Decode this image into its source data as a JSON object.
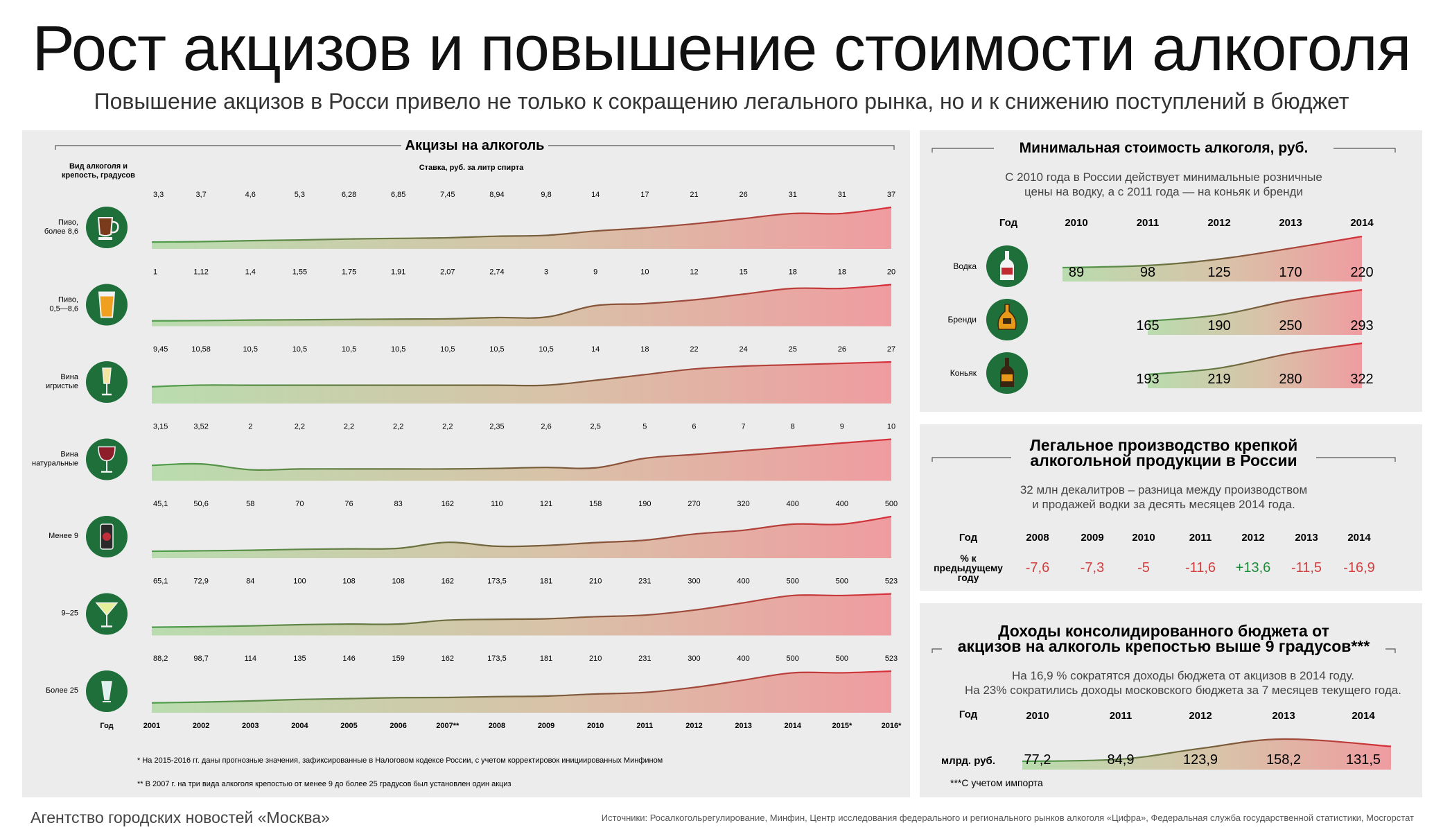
{
  "title": "Рост акцизов и повышение стоимости алкоголя",
  "subtitle": "Повышение акцизов в Росси привело не только к сокращению легального рынка, но и к снижению поступлений в бюджет",
  "colors": {
    "green": "#1e6f3a",
    "positive": "#1e8c3a",
    "negative": "#d33f3f",
    "area_start": "#b9dcae",
    "area_end": "#ef9ca0"
  },
  "excise": {
    "header": "Акцизы на алкоголь",
    "col_label_type": "Вид алкоголя и крепость, градусов",
    "col_label_rate": "Ставка, руб. за литр спирта",
    "year_label": "Год",
    "footnote1": "* На 2015-2016 гг. даны прогнозные значения, зафиксированные в Налоговом кодексе России, с учетом корректировок инициированных Минфином",
    "footnote2": "** В 2007 г. на три вида алкоголя крепостью от менее 9 до более 25 градусов был установлен один акциз"
  },
  "minprice": {
    "header": "Минимальная стоимость алкоголя, руб.",
    "note": "С 2010 года в России действует минимальные розничные цены на водку, а с 2011 года — на коньяк и бренди",
    "year_label": "Год"
  },
  "production": {
    "header_line1": "Легальное производство крепкой",
    "header_line2": "алкогольной продукции в России",
    "note": "32 млн декалитров – разница между производством и продажей водки за десять месяцев 2014 года.",
    "year_label": "Год",
    "row_label": "% к предыдущему году"
  },
  "budget": {
    "header_line1": "Доходы консолидированного бюджета от",
    "header_line2": "акцизов на алкоголь крепостью выше 9 градусов***",
    "note1": "На 16,9 % сократятся доходы бюджета от акцизов в 2014 году.",
    "note2": "На 23% сократились доходы московского бюджета за 7 месяцев текущего года.",
    "year_label": "Год",
    "row_label": "млрд. руб.",
    "footnote": "***С учетом импорта"
  },
  "footer_left": "Агентство городских новостей «Москва»",
  "footer_right": "Источники: Росалкогольрегулирование, Минфин, Центр исследования федерального и регионального рынков алкоголя «Цифра», Федеральная служба государственной статистики, Мосгорстат",
  "chart_data": [
    {
      "type": "area",
      "title": "Акцизы на алкоголь",
      "x": [
        "2001",
        "2002",
        "2003",
        "2004",
        "2005",
        "2006",
        "2007**",
        "2008",
        "2009",
        "2010",
        "2011",
        "2012",
        "2013",
        "2014",
        "2015*",
        "2016*"
      ],
      "series": [
        {
          "name": "Пиво, более 8,6",
          "values": [
            3.3,
            3.7,
            4.6,
            5.3,
            6.28,
            6.85,
            7.45,
            8.94,
            9.8,
            14,
            17,
            21,
            26,
            31,
            31,
            37
          ],
          "labels": [
            "3,3",
            "3,7",
            "4,6",
            "5,3",
            "6,28",
            "6,85",
            "7,45",
            "8,94",
            "9,8",
            "14",
            "17",
            "21",
            "26",
            "31",
            "31",
            "37"
          ]
        },
        {
          "name": "Пиво, 0,5—8,6",
          "values": [
            1,
            1.12,
            1.4,
            1.55,
            1.75,
            1.91,
            2.07,
            2.74,
            3,
            9,
            10,
            12,
            15,
            18,
            18,
            20
          ],
          "labels": [
            "1",
            "1,12",
            "1,4",
            "1,55",
            "1,75",
            "1,91",
            "2,07",
            "2,74",
            "3",
            "9",
            "10",
            "12",
            "15",
            "18",
            "18",
            "20"
          ]
        },
        {
          "name": "Вина игристые",
          "values": [
            9.45,
            10.58,
            10.5,
            10.5,
            10.5,
            10.5,
            10.5,
            10.5,
            10.5,
            14,
            18,
            22,
            24,
            25,
            26,
            27
          ],
          "labels": [
            "9,45",
            "10,58",
            "10,5",
            "10,5",
            "10,5",
            "10,5",
            "10,5",
            "10,5",
            "10,5",
            "14",
            "18",
            "22",
            "24",
            "25",
            "26",
            "27"
          ]
        },
        {
          "name": "Вина натуральные",
          "values": [
            3.15,
            3.52,
            2,
            2.2,
            2.2,
            2.2,
            2.2,
            2.35,
            2.6,
            2.5,
            5,
            6,
            7,
            8,
            9,
            10
          ],
          "labels": [
            "3,15",
            "3,52",
            "2",
            "2,2",
            "2,2",
            "2,2",
            "2,2",
            "2,35",
            "2,6",
            "2,5",
            "5",
            "6",
            "7",
            "8",
            "9",
            "10"
          ]
        },
        {
          "name": "Менее 9",
          "values": [
            45.1,
            50.6,
            58,
            70,
            76,
            83,
            162,
            110,
            121,
            158,
            190,
            270,
            320,
            400,
            400,
            500
          ],
          "labels": [
            "45,1",
            "50,6",
            "58",
            "70",
            "76",
            "83",
            "162",
            "110",
            "121",
            "158",
            "190",
            "270",
            "320",
            "400",
            "400",
            "500"
          ]
        },
        {
          "name": "9–25",
          "values": [
            65.1,
            72.9,
            84,
            100,
            108,
            108,
            162,
            173.5,
            181,
            210,
            231,
            300,
            400,
            500,
            500,
            523
          ],
          "labels": [
            "65,1",
            "72,9",
            "84",
            "100",
            "108",
            "108",
            "162",
            "173,5",
            "181",
            "210",
            "231",
            "300",
            "400",
            "500",
            "500",
            "523"
          ]
        },
        {
          "name": "Более 25",
          "values": [
            88.2,
            98.7,
            114,
            135,
            146,
            159,
            162,
            173.5,
            181,
            210,
            231,
            300,
            400,
            500,
            500,
            523
          ],
          "labels": [
            "88,2",
            "98,7",
            "114",
            "135",
            "146",
            "159",
            "162",
            "173,5",
            "181",
            "210",
            "231",
            "300",
            "400",
            "500",
            "500",
            "523"
          ]
        }
      ]
    },
    {
      "type": "area",
      "title": "Минимальная стоимость алкоголя, руб.",
      "x": [
        "2010",
        "2011",
        "2012",
        "2013",
        "2014"
      ],
      "series": [
        {
          "name": "Водка",
          "values": [
            89,
            98,
            125,
            170,
            220
          ],
          "labels": [
            "89",
            "98",
            "125",
            "170",
            "220"
          ]
        },
        {
          "name": "Бренди",
          "values": [
            null,
            165,
            190,
            250,
            293
          ],
          "labels": [
            "",
            "165",
            "190",
            "250",
            "293"
          ]
        },
        {
          "name": "Коньяк",
          "values": [
            null,
            193,
            219,
            280,
            322
          ],
          "labels": [
            "",
            "193",
            "219",
            "280",
            "322"
          ]
        }
      ]
    },
    {
      "type": "table",
      "title": "Легальное производство крепкой алкогольной продукции в России",
      "x": [
        "2008",
        "2009",
        "2010",
        "2011",
        "2012",
        "2013",
        "2014"
      ],
      "values": [
        -7.6,
        -7.3,
        -5,
        -11.6,
        13.6,
        -11.5,
        -16.9
      ],
      "labels": [
        "-7,6",
        "-7,3",
        "-5",
        "-11,6",
        "+13,6",
        "-11,5",
        "-16,9"
      ]
    },
    {
      "type": "area",
      "title": "Доходы консолидированного бюджета от акцизов на алкоголь крепостью выше 9 градусов***",
      "x": [
        "2010",
        "2011",
        "2012",
        "2013",
        "2014"
      ],
      "values": [
        77.2,
        84.9,
        123.9,
        158.2,
        131.5
      ],
      "labels": [
        "77,2",
        "84,9",
        "123,9",
        "158,2",
        "131,5"
      ]
    }
  ]
}
